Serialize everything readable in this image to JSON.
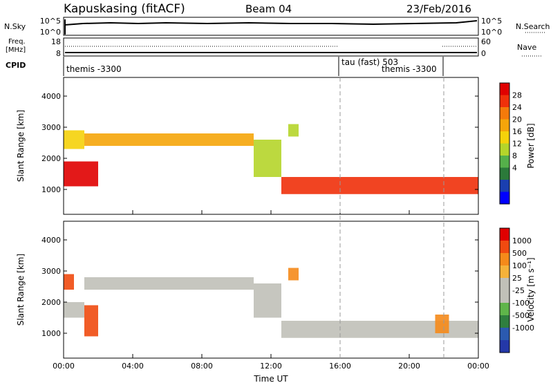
{
  "header": {
    "station": "Kapuskasing (fitACF)",
    "beam": "Beam 04",
    "date": "23/Feb/2016"
  },
  "nsky": {
    "label": "N.Sky",
    "ticks": [
      "10^5",
      "10^0"
    ],
    "right_ticks": [
      "10^5",
      "10^0"
    ],
    "right_label": "N.Search"
  },
  "freq": {
    "label_line1": "Freq.",
    "label_line2": "[MHz]",
    "ticks": [
      "18",
      "8"
    ],
    "right_ticks": [
      "60",
      "0"
    ],
    "right_label": "Nave"
  },
  "cpid": {
    "label": "CPID",
    "entries": [
      "themis -3300",
      "tau (fast) 503",
      "themis -3300"
    ]
  },
  "colors": {
    "power": [
      "#0000ff",
      "#1a3fb0",
      "#2b7a3a",
      "#55b04a",
      "#b5d52a",
      "#f5d20a",
      "#f5a50a",
      "#f57a0a",
      "#f0300a",
      "#e00000"
    ],
    "velocity": [
      "#2438a8",
      "#2b5ab0",
      "#2f7f3f",
      "#5fb54a",
      "#c0c0b8",
      "#c0c0b8",
      "#f5b23a",
      "#f58a1a",
      "#f04a10",
      "#e00000"
    ]
  },
  "chart_data": [
    {
      "type": "heatmap",
      "name": "power",
      "ylabel": "Slant Range [km]",
      "yticks": [
        "4000",
        "3000",
        "2000",
        "1000"
      ],
      "ylim": [
        200,
        4600
      ],
      "xticks": [
        "00:00",
        "04:00",
        "08:00",
        "12:00",
        "16:00",
        "20:00",
        "00:00"
      ],
      "xlim_hours": [
        0,
        24
      ],
      "colorbar_label": "Power [dB]",
      "colorbar_ticks": [
        "28",
        "24",
        "20",
        "16",
        "12",
        "8",
        "4"
      ],
      "bands": [
        {
          "from_h": 0.0,
          "to_h": 1.2,
          "y1": 2300,
          "y2": 2900,
          "level": 5
        },
        {
          "from_h": 0.0,
          "to_h": 2.0,
          "y1": 1100,
          "y2": 1900,
          "level": 9
        },
        {
          "from_h": 1.2,
          "to_h": 11.0,
          "y1": 2400,
          "y2": 2800,
          "level": 6
        },
        {
          "from_h": 11.0,
          "to_h": 12.6,
          "y1": 1400,
          "y2": 2600,
          "level": 4
        },
        {
          "from_h": 12.6,
          "to_h": 24.0,
          "y1": 850,
          "y2": 1400,
          "level": 8
        },
        {
          "from_h": 13.0,
          "to_h": 13.6,
          "y1": 2700,
          "y2": 3100,
          "level": 4
        }
      ]
    },
    {
      "type": "heatmap",
      "name": "velocity",
      "ylabel": "Slant Range [km]",
      "yticks": [
        "4000",
        "3000",
        "2000",
        "1000"
      ],
      "ylim": [
        200,
        4600
      ],
      "xticks": [
        "00:00",
        "04:00",
        "08:00",
        "12:00",
        "16:00",
        "20:00",
        "00:00"
      ],
      "xlim_hours": [
        0,
        24
      ],
      "xlabel": "Time UT",
      "colorbar_label": "Velocity [m s⁻¹]",
      "colorbar_ticks": [
        "1000",
        "500",
        "100",
        "25",
        "-25",
        "-100",
        "-500",
        "-1000"
      ],
      "bands": [
        {
          "from_h": 0.0,
          "to_h": 0.6,
          "y1": 2400,
          "y2": 2900,
          "level": 8
        },
        {
          "from_h": 0.0,
          "to_h": 1.2,
          "y1": 1500,
          "y2": 2000,
          "level": 5
        },
        {
          "from_h": 1.2,
          "to_h": 2.0,
          "y1": 900,
          "y2": 1900,
          "level": 8
        },
        {
          "from_h": 1.2,
          "to_h": 11.0,
          "y1": 2400,
          "y2": 2800,
          "level": 5
        },
        {
          "from_h": 11.0,
          "to_h": 12.6,
          "y1": 1500,
          "y2": 2600,
          "level": 5
        },
        {
          "from_h": 12.6,
          "to_h": 24.0,
          "y1": 850,
          "y2": 1400,
          "level": 5
        },
        {
          "from_h": 13.0,
          "to_h": 13.6,
          "y1": 2700,
          "y2": 3100,
          "level": 7
        },
        {
          "from_h": 21.5,
          "to_h": 22.3,
          "y1": 1000,
          "y2": 1600,
          "level": 7
        }
      ]
    }
  ]
}
